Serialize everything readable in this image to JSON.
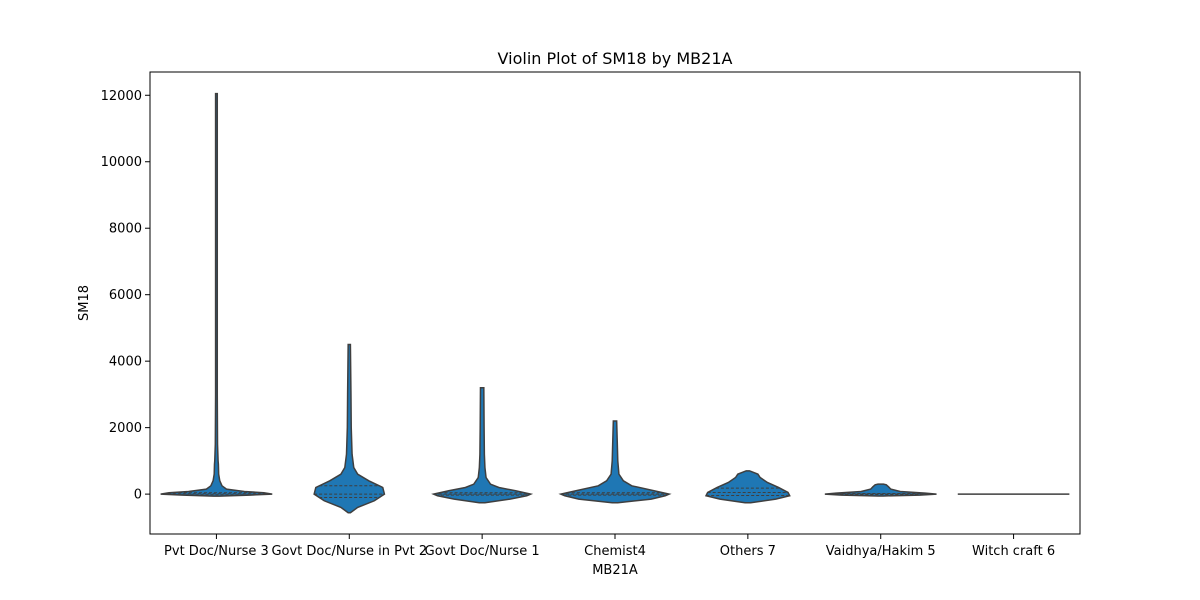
{
  "chart_data": {
    "type": "violin",
    "title": "Violin Plot of SM18 by MB21A",
    "xlabel": "MB21A",
    "ylabel": "SM18",
    "ylim": [
      -1200,
      12700
    ],
    "yticks": [
      0,
      2000,
      4000,
      6000,
      8000,
      10000,
      12000
    ],
    "grid": false,
    "color": "#1f77b4",
    "categories": [
      "Pvt Doc/Nurse 3",
      "Govt Doc/Nurse in Pvt 2",
      "Govt Doc/Nurse 1",
      "Chemist4",
      "Others 7",
      "Vaidhya/Hakim 5",
      "Witch craft 6"
    ],
    "series": [
      {
        "min": -50,
        "max": 12050,
        "quartiles": [
          -20,
          10,
          40
        ],
        "profile": [
          [
            -60,
            0.05
          ],
          [
            -30,
            0.6
          ],
          [
            0,
            1.0
          ],
          [
            40,
            0.85
          ],
          [
            80,
            0.5
          ],
          [
            150,
            0.18
          ],
          [
            250,
            0.1
          ],
          [
            400,
            0.06
          ],
          [
            600,
            0.04
          ],
          [
            900,
            0.035
          ],
          [
            1000,
            0.03
          ],
          [
            1500,
            0.02
          ],
          [
            3000,
            0.015
          ],
          [
            6000,
            0.015
          ],
          [
            12050,
            0.015
          ]
        ]
      },
      {
        "min": -550,
        "max": 4500,
        "quartiles": [
          -100,
          0,
          250
        ],
        "profile": [
          [
            -560,
            0.02
          ],
          [
            -400,
            0.15
          ],
          [
            -200,
            0.45
          ],
          [
            0,
            0.63
          ],
          [
            200,
            0.6
          ],
          [
            400,
            0.35
          ],
          [
            600,
            0.15
          ],
          [
            800,
            0.08
          ],
          [
            1200,
            0.05
          ],
          [
            2000,
            0.035
          ],
          [
            3000,
            0.03
          ],
          [
            4500,
            0.02
          ]
        ]
      },
      {
        "min": -250,
        "max": 3200,
        "quartiles": [
          -30,
          0,
          40
        ],
        "profile": [
          [
            -260,
            0.05
          ],
          [
            -150,
            0.5
          ],
          [
            -50,
            0.8
          ],
          [
            0,
            0.87
          ],
          [
            100,
            0.6
          ],
          [
            200,
            0.3
          ],
          [
            300,
            0.15
          ],
          [
            500,
            0.07
          ],
          [
            800,
            0.05
          ],
          [
            1200,
            0.04
          ],
          [
            2000,
            0.035
          ],
          [
            3200,
            0.03
          ]
        ]
      },
      {
        "min": -250,
        "max": 2200,
        "quartiles": [
          -30,
          0,
          40
        ],
        "profile": [
          [
            -260,
            0.05
          ],
          [
            -150,
            0.65
          ],
          [
            -50,
            0.9
          ],
          [
            0,
            0.97
          ],
          [
            100,
            0.7
          ],
          [
            250,
            0.3
          ],
          [
            400,
            0.15
          ],
          [
            600,
            0.07
          ],
          [
            1000,
            0.05
          ],
          [
            1600,
            0.04
          ],
          [
            2200,
            0.03
          ]
        ]
      },
      {
        "min": -250,
        "max": 700,
        "quartiles": [
          -40,
          50,
          180
        ],
        "profile": [
          [
            -260,
            0.05
          ],
          [
            -150,
            0.5
          ],
          [
            -50,
            0.75
          ],
          [
            50,
            0.72
          ],
          [
            200,
            0.55
          ],
          [
            350,
            0.35
          ],
          [
            500,
            0.22
          ],
          [
            600,
            0.18
          ],
          [
            700,
            0.03
          ]
        ]
      },
      {
        "min": -50,
        "max": 300,
        "quartiles": [
          -10,
          0,
          20
        ],
        "profile": [
          [
            -55,
            0.05
          ],
          [
            -30,
            0.7
          ],
          [
            0,
            1.0
          ],
          [
            30,
            0.8
          ],
          [
            80,
            0.35
          ],
          [
            150,
            0.18
          ],
          [
            220,
            0.14
          ],
          [
            280,
            0.1
          ],
          [
            300,
            0.05
          ]
        ]
      },
      {
        "min": 0,
        "max": 0,
        "quartiles": [
          0,
          0,
          0
        ],
        "profile": []
      }
    ]
  }
}
